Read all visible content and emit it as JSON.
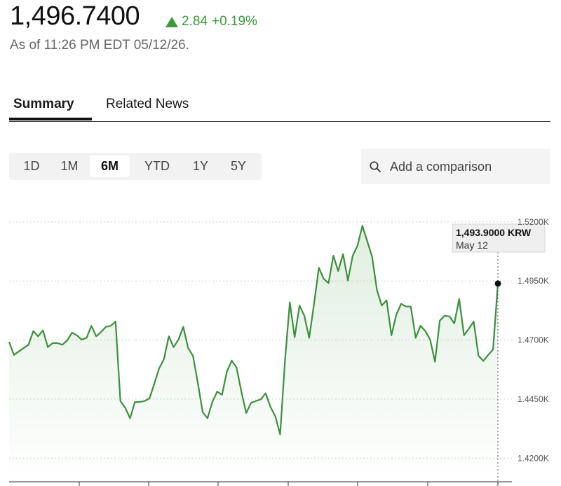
{
  "quote": {
    "price": "1,496.7400",
    "change": "2.84",
    "change_pct": "+0.19%",
    "as_of": "As of 11:26 PM EDT 05/12/26."
  },
  "tabs": [
    {
      "label": "Summary",
      "active": true
    },
    {
      "label": "Related News",
      "active": false
    }
  ],
  "ranges": [
    {
      "label": "1D",
      "active": false
    },
    {
      "label": "1M",
      "active": false
    },
    {
      "label": "6M",
      "active": true
    },
    {
      "label": "YTD",
      "active": false
    },
    {
      "label": "1Y",
      "active": false
    },
    {
      "label": "5Y",
      "active": false
    }
  ],
  "compare": {
    "placeholder": "Add a comparison",
    "icon": "search-icon"
  },
  "colors": {
    "up": "#3c9a3c",
    "line": "#3d8f3d",
    "grid": "#cfcfcf"
  },
  "chart_data": {
    "type": "line",
    "y_tick_labels": [
      "1.5200K",
      "1.4950K",
      "1.4700K",
      "1.4450K",
      "1.4200K"
    ],
    "y_ticks": [
      1520,
      1495,
      1470,
      1445,
      1420
    ],
    "ylim": [
      1410,
      1525
    ],
    "grid": true,
    "tooltip": {
      "value": "1,493.9000 KRW",
      "date": "May 12"
    },
    "last_value": 1493.9,
    "values": [
      1469.2,
      1463.7,
      1465.2,
      1466.6,
      1468.0,
      1473.8,
      1471.6,
      1474.1,
      1467.0,
      1468.7,
      1468.7,
      1468.0,
      1469.8,
      1473.1,
      1472.0,
      1470.2,
      1470.9,
      1476.0,
      1471.6,
      1473.4,
      1475.6,
      1476.0,
      1477.8,
      1444.2,
      1441.3,
      1436.9,
      1443.8,
      1443.8,
      1444.2,
      1445.3,
      1451.5,
      1458.0,
      1462.0,
      1471.6,
      1467.0,
      1470.2,
      1475.6,
      1466.6,
      1463.3,
      1451.9,
      1439.5,
      1436.9,
      1443.8,
      1448.2,
      1446.8,
      1456.6,
      1461.3,
      1458.4,
      1448.2,
      1439.1,
      1443.4,
      1444.2,
      1444.9,
      1447.5,
      1441.7,
      1437.7,
      1430.1,
      1461.3,
      1486.0,
      1471.2,
      1484.6,
      1480.3,
      1470.9,
      1485.3,
      1500.6,
      1495.9,
      1494.1,
      1505.7,
      1499.2,
      1506.4,
      1495.2,
      1505.7,
      1510.0,
      1518.4,
      1511.8,
      1505.3,
      1491.2,
      1484.6,
      1486.8,
      1472.0,
      1480.7,
      1485.3,
      1484.2,
      1484.2,
      1470.9,
      1476.0,
      1473.8,
      1470.2,
      1460.8,
      1478.2,
      1480.3,
      1480.0,
      1477.0,
      1487.4,
      1472.0,
      1474.8,
      1477.8,
      1463.3,
      1461.2,
      1463.7,
      1466.0,
      1493.9
    ]
  }
}
